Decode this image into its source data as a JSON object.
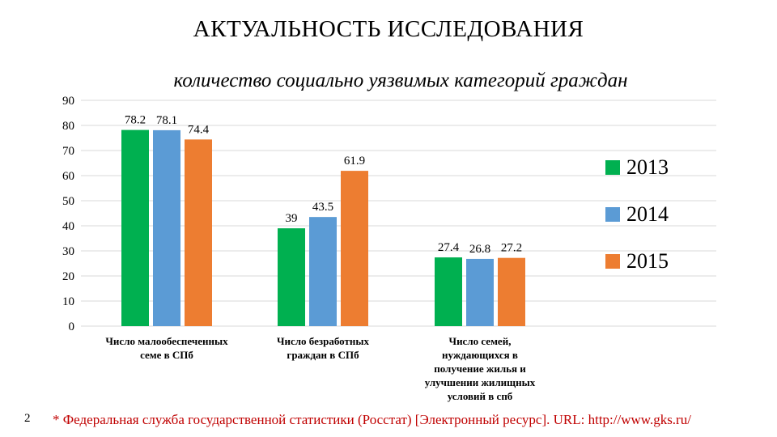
{
  "slide": {
    "title": "АКТУАЛЬНОСТЬ ИССЛЕДОВАНИЯ",
    "page_number": "2",
    "footnote": "* Федеральная служба государственной статистики (Росстат) [Электронный ресурс]. URL: http://www.gks.ru/"
  },
  "colors": {
    "2013": "#00b050",
    "2014": "#5b9bd5",
    "2015": "#ed7d31"
  },
  "chart_data": {
    "type": "bar",
    "title": "количество социально уязвимых категорий граждан",
    "categories": [
      "Число малообеспеченных\nсеме в СПб",
      "Число безработных\nграждан в СПб",
      "Число семей,\nнуждающихся в\nполучение жилья и\nулучшении жилищных\nусловий в спб"
    ],
    "series": [
      {
        "name": "2013",
        "values": [
          78.2,
          39,
          27.4
        ],
        "labels": [
          "78.2",
          "39",
          "27.4"
        ]
      },
      {
        "name": "2014",
        "values": [
          78.1,
          43.5,
          26.8
        ],
        "labels": [
          "78.1",
          "43.5",
          "26.8"
        ]
      },
      {
        "name": "2015",
        "values": [
          74.4,
          61.9,
          27.2
        ],
        "labels": [
          "74.4",
          "61.9",
          "27.2"
        ]
      }
    ],
    "yticks": [
      "0",
      "10",
      "20",
      "30",
      "40",
      "50",
      "60",
      "70",
      "80",
      "90"
    ],
    "ylim": [
      0,
      90
    ],
    "grid": true,
    "legend": "right"
  }
}
